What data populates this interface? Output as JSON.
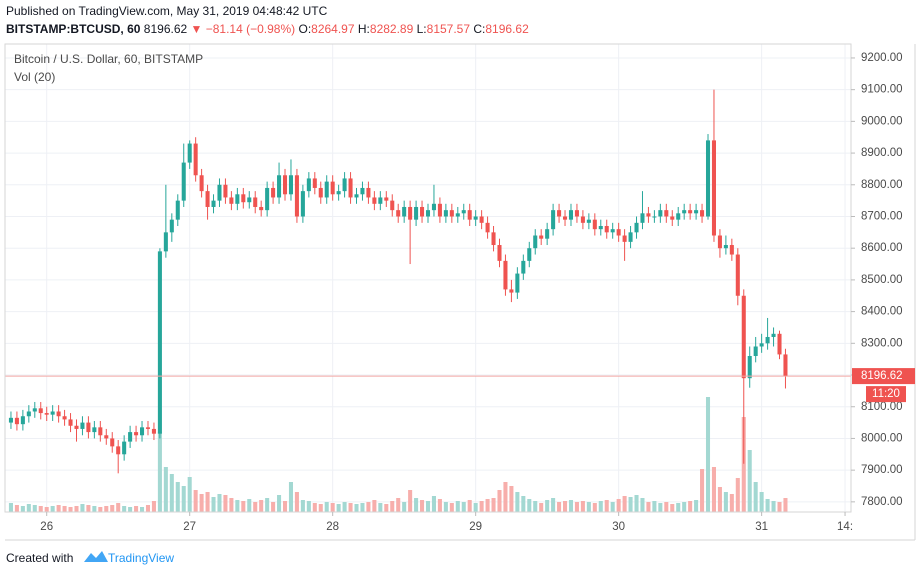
{
  "header": {
    "published": "Published on TradingView.com, May 31, 2019 04:48:42 UTC",
    "symbol": "BITSTAMP:BTCUSD, 60",
    "price": "8196.62",
    "change": "▼ −81.14 (−0.98%)",
    "ohlc": [
      {
        "label": "O:",
        "value": "8264.97"
      },
      {
        "label": "H:",
        "value": "8282.89"
      },
      {
        "label": "L:",
        "value": "8157.57"
      },
      {
        "label": "C:",
        "value": "8196.62"
      }
    ]
  },
  "footer": {
    "created": "Created with",
    "brand": "TradingView"
  },
  "chart_data": {
    "type": "candlestick",
    "title": "Bitcoin / U.S. Dollar, 60, BITSTAMP",
    "subtitle": "Vol (20)",
    "countdown": "11:20",
    "xlim": [
      -1,
      141
    ],
    "xticks": [
      {
        "value": 6,
        "label": "26"
      },
      {
        "value": 30,
        "label": "27"
      },
      {
        "value": 54,
        "label": "28"
      },
      {
        "value": 78,
        "label": "29"
      },
      {
        "value": 102,
        "label": "30"
      },
      {
        "value": 126,
        "label": "31"
      },
      {
        "value": 140,
        "label": "14:"
      }
    ],
    "ylim": [
      7768,
      9244
    ],
    "yticks": [
      {
        "value": 7800,
        "label": "7800.00"
      },
      {
        "value": 7900,
        "label": "7900.00"
      },
      {
        "value": 8000,
        "label": "8000.00"
      },
      {
        "value": 8100,
        "label": "8100.00"
      },
      {
        "value": 8200,
        "label": "8200.00"
      },
      {
        "value": 8300,
        "label": "8300.00"
      },
      {
        "value": 8400,
        "label": "8400.00"
      },
      {
        "value": 8500,
        "label": "8500.00"
      },
      {
        "value": 8600,
        "label": "8600.00"
      },
      {
        "value": 8700,
        "label": "8700.00"
      },
      {
        "value": 8800,
        "label": "8800.00"
      },
      {
        "value": 8900,
        "label": "8900.00"
      },
      {
        "value": 9000,
        "label": "9000.00"
      },
      {
        "value": 9100,
        "label": "9100.00"
      },
      {
        "value": 9200,
        "label": "9200.00"
      }
    ],
    "grid": true,
    "series": [
      {
        "up_color": "#26a69a",
        "down_color": "#ef5350",
        "ohlc": [
          [
            8050,
            8085,
            8030,
            8065
          ],
          [
            8065,
            8085,
            8025,
            8045
          ],
          [
            8045,
            8090,
            8025,
            8070
          ],
          [
            8070,
            8105,
            8050,
            8085
          ],
          [
            8085,
            8115,
            8065,
            8095
          ],
          [
            8095,
            8115,
            8060,
            8080
          ],
          [
            8080,
            8100,
            8055,
            8075
          ],
          [
            8075,
            8105,
            8055,
            8085
          ],
          [
            8085,
            8105,
            8050,
            8070
          ],
          [
            8070,
            8090,
            8040,
            8060
          ],
          [
            8060,
            8080,
            8020,
            8040
          ],
          [
            8040,
            8060,
            7990,
            8030
          ],
          [
            8030,
            8070,
            8010,
            8050
          ],
          [
            8050,
            8070,
            8000,
            8020
          ],
          [
            8020,
            8055,
            8000,
            8035
          ],
          [
            8035,
            8055,
            7990,
            8010
          ],
          [
            8010,
            8030,
            7980,
            8000
          ],
          [
            8000,
            8020,
            7955,
            7975
          ],
          [
            7975,
            7995,
            7890,
            7950
          ],
          [
            7950,
            8010,
            7930,
            7990
          ],
          [
            7990,
            8040,
            7970,
            8020
          ],
          [
            8020,
            8040,
            7990,
            8010
          ],
          [
            8010,
            8055,
            7990,
            8035
          ],
          [
            8035,
            8055,
            8010,
            8030
          ],
          [
            8030,
            8050,
            7995,
            8015
          ],
          [
            8015,
            8600,
            8000,
            8590
          ],
          [
            8590,
            8800,
            8570,
            8650
          ],
          [
            8650,
            8710,
            8620,
            8690
          ],
          [
            8690,
            8770,
            8670,
            8750
          ],
          [
            8750,
            8930,
            8730,
            8870
          ],
          [
            8870,
            8940,
            8850,
            8930
          ],
          [
            8930,
            8950,
            8810,
            8830
          ],
          [
            8830,
            8850,
            8760,
            8780
          ],
          [
            8780,
            8800,
            8690,
            8730
          ],
          [
            8730,
            8770,
            8710,
            8750
          ],
          [
            8750,
            8820,
            8730,
            8800
          ],
          [
            8800,
            8820,
            8740,
            8760
          ],
          [
            8760,
            8780,
            8720,
            8740
          ],
          [
            8740,
            8790,
            8720,
            8770
          ],
          [
            8770,
            8790,
            8725,
            8745
          ],
          [
            8745,
            8780,
            8725,
            8760
          ],
          [
            8760,
            8780,
            8710,
            8730
          ],
          [
            8730,
            8750,
            8700,
            8720
          ],
          [
            8720,
            8810,
            8700,
            8790
          ],
          [
            8790,
            8810,
            8740,
            8760
          ],
          [
            8760,
            8870,
            8740,
            8830
          ],
          [
            8830,
            8850,
            8750,
            8770
          ],
          [
            8770,
            8880,
            8750,
            8830
          ],
          [
            8830,
            8850,
            8680,
            8700
          ],
          [
            8700,
            8800,
            8680,
            8780
          ],
          [
            8780,
            8840,
            8760,
            8820
          ],
          [
            8820,
            8840,
            8770,
            8790
          ],
          [
            8790,
            8810,
            8740,
            8760
          ],
          [
            8760,
            8830,
            8740,
            8810
          ],
          [
            8810,
            8830,
            8750,
            8770
          ],
          [
            8770,
            8800,
            8750,
            8780
          ],
          [
            8780,
            8840,
            8760,
            8820
          ],
          [
            8820,
            8840,
            8740,
            8760
          ],
          [
            8760,
            8790,
            8740,
            8770
          ],
          [
            8770,
            8810,
            8750,
            8790
          ],
          [
            8790,
            8810,
            8740,
            8760
          ],
          [
            8760,
            8780,
            8720,
            8740
          ],
          [
            8740,
            8780,
            8720,
            8760
          ],
          [
            8760,
            8780,
            8730,
            8750
          ],
          [
            8750,
            8770,
            8700,
            8720
          ],
          [
            8720,
            8740,
            8680,
            8700
          ],
          [
            8700,
            8750,
            8680,
            8730
          ],
          [
            8730,
            8750,
            8550,
            8690
          ],
          [
            8690,
            8750,
            8670,
            8730
          ],
          [
            8730,
            8750,
            8680,
            8700
          ],
          [
            8700,
            8740,
            8680,
            8720
          ],
          [
            8720,
            8800,
            8700,
            8740
          ],
          [
            8740,
            8760,
            8680,
            8700
          ],
          [
            8700,
            8740,
            8680,
            8720
          ],
          [
            8720,
            8740,
            8680,
            8700
          ],
          [
            8700,
            8730,
            8680,
            8710
          ],
          [
            8710,
            8740,
            8690,
            8720
          ],
          [
            8720,
            8740,
            8670,
            8690
          ],
          [
            8690,
            8720,
            8670,
            8700
          ],
          [
            8700,
            8720,
            8660,
            8680
          ],
          [
            8680,
            8700,
            8630,
            8650
          ],
          [
            8650,
            8670,
            8590,
            8610
          ],
          [
            8610,
            8630,
            8540,
            8560
          ],
          [
            8560,
            8580,
            8450,
            8470
          ],
          [
            8470,
            8500,
            8430,
            8460
          ],
          [
            8460,
            8540,
            8440,
            8520
          ],
          [
            8520,
            8580,
            8500,
            8560
          ],
          [
            8560,
            8620,
            8540,
            8600
          ],
          [
            8600,
            8660,
            8580,
            8640
          ],
          [
            8640,
            8660,
            8610,
            8630
          ],
          [
            8630,
            8680,
            8610,
            8660
          ],
          [
            8660,
            8740,
            8640,
            8720
          ],
          [
            8720,
            8740,
            8680,
            8700
          ],
          [
            8700,
            8720,
            8670,
            8690
          ],
          [
            8690,
            8740,
            8670,
            8720
          ],
          [
            8720,
            8740,
            8680,
            8700
          ],
          [
            8700,
            8720,
            8660,
            8680
          ],
          [
            8680,
            8710,
            8660,
            8690
          ],
          [
            8690,
            8710,
            8640,
            8660
          ],
          [
            8660,
            8690,
            8640,
            8670
          ],
          [
            8670,
            8690,
            8630,
            8650
          ],
          [
            8650,
            8680,
            8630,
            8660
          ],
          [
            8660,
            8680,
            8620,
            8640
          ],
          [
            8640,
            8660,
            8560,
            8620
          ],
          [
            8620,
            8670,
            8600,
            8650
          ],
          [
            8650,
            8700,
            8630,
            8680
          ],
          [
            8680,
            8780,
            8660,
            8710
          ],
          [
            8710,
            8730,
            8680,
            8700
          ],
          [
            8700,
            8720,
            8680,
            8700
          ],
          [
            8700,
            8740,
            8680,
            8720
          ],
          [
            8720,
            8740,
            8680,
            8700
          ],
          [
            8700,
            8720,
            8670,
            8690
          ],
          [
            8690,
            8730,
            8670,
            8710
          ],
          [
            8710,
            8740,
            8690,
            8720
          ],
          [
            8720,
            8740,
            8690,
            8710
          ],
          [
            8710,
            8740,
            8690,
            8720
          ],
          [
            8720,
            8740,
            8680,
            8700
          ],
          [
            8700,
            8960,
            8690,
            8940
          ],
          [
            8940,
            9100,
            8620,
            8640
          ],
          [
            8640,
            8660,
            8570,
            8600
          ],
          [
            8600,
            8640,
            8580,
            8610
          ],
          [
            8610,
            8630,
            8560,
            8580
          ],
          [
            8580,
            8600,
            8420,
            8450
          ],
          [
            8450,
            8470,
            7920,
            8190
          ],
          [
            8190,
            8290,
            8160,
            8260
          ],
          [
            8260,
            8320,
            8240,
            8290
          ],
          [
            8290,
            8330,
            8270,
            8300
          ],
          [
            8300,
            8380,
            8280,
            8320
          ],
          [
            8320,
            8350,
            8290,
            8330
          ],
          [
            8330,
            8340,
            8250,
            8264.97
          ],
          [
            8264.97,
            8282.89,
            8157.57,
            8196.62
          ]
        ]
      },
      {
        "up_color": "#a3d8d2",
        "down_color": "#f7aeab",
        "values": [
          90,
          70,
          60,
          80,
          70,
          60,
          50,
          60,
          70,
          60,
          50,
          60,
          80,
          70,
          60,
          50,
          60,
          70,
          90,
          60,
          50,
          60,
          50,
          70,
          110,
          800,
          450,
          380,
          300,
          260,
          350,
          220,
          180,
          200,
          150,
          180,
          170,
          140,
          120,
          110,
          130,
          100,
          120,
          140,
          100,
          170,
          110,
          300,
          200,
          120,
          110,
          90,
          80,
          100,
          90,
          80,
          100,
          90,
          80,
          90,
          100,
          120,
          90,
          80,
          110,
          140,
          100,
          220,
          140,
          120,
          110,
          160,
          130,
          100,
          90,
          110,
          100,
          120,
          90,
          110,
          130,
          140,
          220,
          300,
          260,
          200,
          160,
          130,
          110,
          90,
          120,
          140,
          100,
          110,
          120,
          100,
          110,
          100,
          90,
          110,
          120,
          100,
          130,
          160,
          150,
          170,
          140,
          100,
          110,
          90,
          100,
          80,
          90,
          100,
          110,
          120,
          430,
          1150,
          450,
          250,
          200,
          180,
          340,
          950,
          620,
          300,
          200,
          130,
          110,
          100,
          140
        ]
      }
    ]
  }
}
